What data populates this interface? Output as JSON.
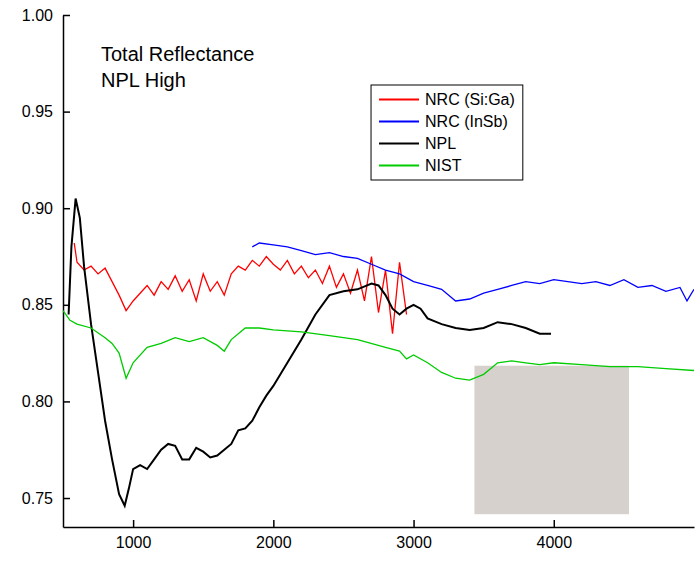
{
  "chart_data": {
    "type": "line",
    "annotations": [
      "Total Reflectance",
      "NPL High"
    ],
    "xlim": [
      500,
      5000
    ],
    "xticks": [
      1000,
      2000,
      3000,
      4000
    ],
    "ylim": [
      0.735,
      1.0
    ],
    "yticks": [
      0.75,
      {
        "value": 0.8,
        "label": "0.80"
      },
      0.85,
      {
        "value": 0.9,
        "label": "0.90"
      },
      0.95,
      {
        "value": 1.0,
        "label": "1.00"
      }
    ],
    "legend": "upper right",
    "grid": false,
    "series": [
      {
        "name": "NRC (Si:Ga)",
        "color": "#ff0000",
        "x": [
          580,
          600,
          650,
          700,
          750,
          800,
          850,
          900,
          950,
          1000,
          1050,
          1100,
          1150,
          1200,
          1250,
          1300,
          1350,
          1400,
          1450,
          1500,
          1550,
          1600,
          1650,
          1700,
          1750,
          1800,
          1850,
          1900,
          1950,
          2000,
          2050,
          2100,
          2150,
          2200,
          2250,
          2300,
          2350,
          2400,
          2450,
          2500,
          2550,
          2600,
          2650,
          2700,
          2750,
          2800,
          2850,
          2900,
          2950
        ],
        "values": [
          0.882,
          0.872,
          0.868,
          0.87,
          0.866,
          0.869,
          0.862,
          0.855,
          0.847,
          0.852,
          0.856,
          0.86,
          0.855,
          0.862,
          0.858,
          0.865,
          0.857,
          0.863,
          0.852,
          0.866,
          0.857,
          0.862,
          0.855,
          0.866,
          0.87,
          0.868,
          0.873,
          0.87,
          0.875,
          0.871,
          0.868,
          0.873,
          0.866,
          0.87,
          0.864,
          0.868,
          0.861,
          0.87,
          0.859,
          0.866,
          0.856,
          0.868,
          0.852,
          0.875,
          0.846,
          0.868,
          0.835,
          0.872,
          0.845
        ]
      },
      {
        "name": "NRC (InSb)",
        "color": "#0000ff",
        "x": [
          1850,
          1900,
          2000,
          2100,
          2200,
          2300,
          2400,
          2500,
          2600,
          2700,
          2800,
          2900,
          3000,
          3100,
          3200,
          3300,
          3400,
          3500,
          3600,
          3700,
          3800,
          3900,
          4000,
          4100,
          4200,
          4300,
          4400,
          4500,
          4600,
          4700,
          4800,
          4900,
          4950,
          5000
        ],
        "values": [
          0.88,
          0.882,
          0.881,
          0.88,
          0.878,
          0.876,
          0.877,
          0.875,
          0.874,
          0.871,
          0.868,
          0.866,
          0.862,
          0.86,
          0.858,
          0.852,
          0.853,
          0.856,
          0.858,
          0.86,
          0.862,
          0.861,
          0.863,
          0.862,
          0.861,
          0.862,
          0.86,
          0.863,
          0.859,
          0.86,
          0.857,
          0.859,
          0.852,
          0.858
        ]
      },
      {
        "name": "NPL",
        "color": "#000000",
        "x": [
          540,
          560,
          590,
          620,
          650,
          700,
          750,
          800,
          850,
          900,
          940,
          970,
          1000,
          1050,
          1100,
          1150,
          1200,
          1250,
          1300,
          1350,
          1400,
          1450,
          1500,
          1550,
          1600,
          1650,
          1700,
          1750,
          1800,
          1850,
          1900,
          1950,
          2000,
          2100,
          2200,
          2300,
          2400,
          2500,
          2600,
          2700,
          2750,
          2800,
          2850,
          2900,
          2950,
          3000,
          3050,
          3100,
          3200,
          3300,
          3400,
          3500,
          3600,
          3700,
          3800,
          3900,
          3980
        ],
        "values": [
          0.845,
          0.88,
          0.905,
          0.895,
          0.87,
          0.84,
          0.815,
          0.79,
          0.77,
          0.752,
          0.746,
          0.755,
          0.765,
          0.767,
          0.765,
          0.77,
          0.775,
          0.778,
          0.777,
          0.77,
          0.77,
          0.776,
          0.774,
          0.771,
          0.772,
          0.775,
          0.778,
          0.785,
          0.786,
          0.79,
          0.797,
          0.803,
          0.808,
          0.82,
          0.832,
          0.845,
          0.855,
          0.857,
          0.858,
          0.861,
          0.86,
          0.855,
          0.848,
          0.845,
          0.848,
          0.85,
          0.848,
          0.843,
          0.84,
          0.838,
          0.837,
          0.838,
          0.841,
          0.84,
          0.838,
          0.835,
          0.835
        ]
      },
      {
        "name": "NIST",
        "color": "#00cc00",
        "x": [
          500,
          550,
          600,
          700,
          800,
          850,
          900,
          950,
          1000,
          1100,
          1200,
          1300,
          1400,
          1500,
          1600,
          1650,
          1700,
          1800,
          1900,
          2000,
          2200,
          2400,
          2600,
          2800,
          2900,
          2950,
          3000,
          3100,
          3200,
          3300,
          3400,
          3500,
          3600,
          3700,
          3800,
          3900,
          4000,
          4200,
          4400,
          4600,
          4800,
          5000
        ],
        "values": [
          0.847,
          0.842,
          0.84,
          0.838,
          0.833,
          0.83,
          0.825,
          0.812,
          0.82,
          0.828,
          0.83,
          0.833,
          0.831,
          0.833,
          0.829,
          0.826,
          0.832,
          0.838,
          0.838,
          0.837,
          0.836,
          0.834,
          0.832,
          0.828,
          0.826,
          0.822,
          0.824,
          0.82,
          0.815,
          0.812,
          0.811,
          0.814,
          0.82,
          0.821,
          0.82,
          0.819,
          0.82,
          0.819,
          0.818,
          0.818,
          0.817,
          0.816
        ]
      }
    ]
  }
}
